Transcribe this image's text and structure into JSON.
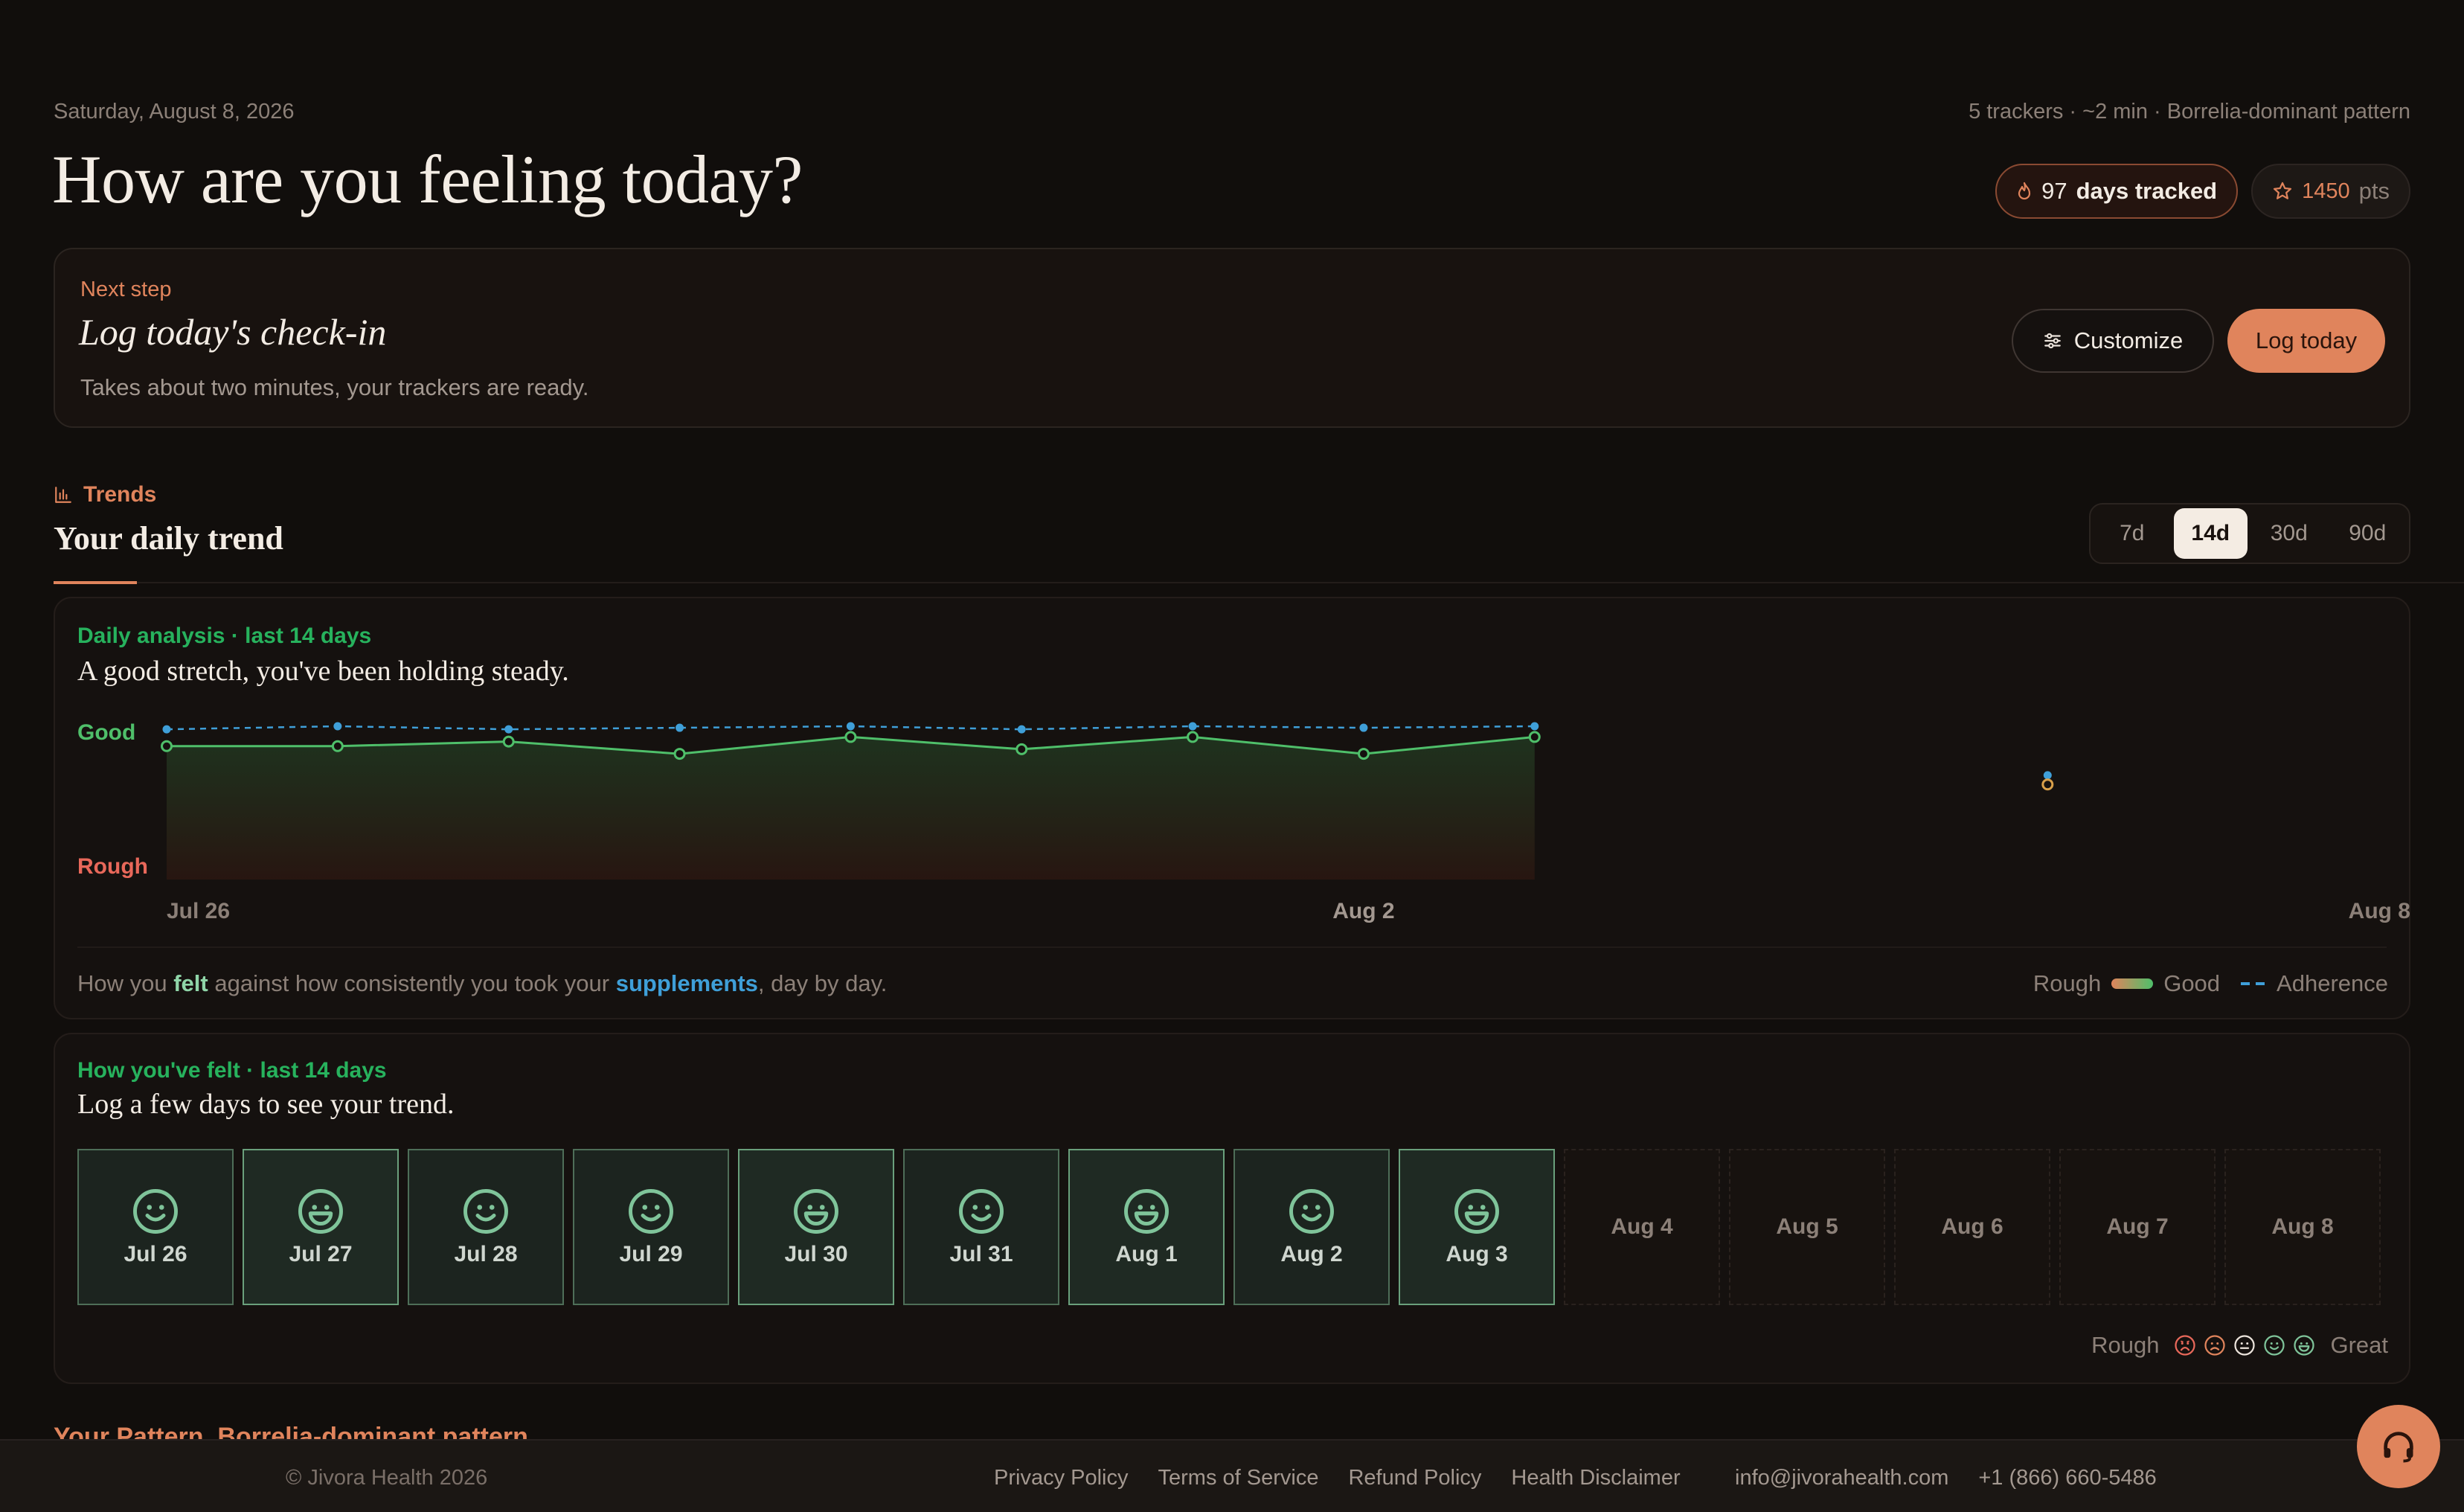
{
  "header": {
    "date": "Saturday, August 8, 2026",
    "meta": "5 trackers · ~2 min · Borrelia-dominant pattern",
    "title": "How are you feeling today?",
    "streak_count": "97",
    "streak_label": "days tracked",
    "points_value": "1450",
    "points_unit": "pts"
  },
  "next_step": {
    "kicker": "Next step",
    "title": "Log today's check-in",
    "subtitle": "Takes about two minutes, your trackers are ready.",
    "customize_label": "Customize",
    "log_label": "Log today"
  },
  "trends": {
    "kicker": "Trends",
    "title": "Your daily trend",
    "ranges": [
      "7d",
      "14d",
      "30d",
      "90d"
    ],
    "active_range": "14d"
  },
  "analysis": {
    "kicker": "Daily analysis · last 14 days",
    "headline": "A good stretch, you've been holding steady.",
    "note_pre": "How you ",
    "note_felt": "felt",
    "note_mid": " against how consistently you took your ",
    "note_supp": "supplements",
    "note_post": ", day by day.",
    "legend_rough": "Rough",
    "legend_good": "Good",
    "legend_adherence": "Adherence"
  },
  "chart_data": {
    "type": "line",
    "y_top_label": "Good",
    "y_bottom_label": "Rough",
    "x_tick_labels": [
      "Jul 26",
      "Aug 2",
      "Aug 8"
    ],
    "dates": [
      "Jul 26",
      "Jul 27",
      "Jul 28",
      "Jul 29",
      "Jul 30",
      "Jul 31",
      "Aug 1",
      "Aug 2",
      "Aug 3",
      "Aug 4",
      "Aug 5",
      "Aug 6",
      "Aug 7",
      "Aug 8"
    ],
    "ylim": [
      0,
      1
    ],
    "series": [
      {
        "name": "felt",
        "color": "#4fbf6a",
        "values": [
          0.87,
          0.87,
          0.9,
          0.82,
          0.93,
          0.85,
          0.93,
          0.82,
          0.93,
          null,
          null,
          null,
          null,
          null
        ]
      },
      {
        "name": "supplements",
        "color": "#3f9fd8",
        "values": [
          0.98,
          1.0,
          0.98,
          0.99,
          1.0,
          0.98,
          1.0,
          0.99,
          1.0,
          null,
          null,
          null,
          null,
          null
        ]
      }
    ],
    "isolated_points": [
      {
        "date": "Aug 6",
        "felt": 0.62,
        "supplements": 0.68
      }
    ]
  },
  "felt": {
    "kicker": "How you've felt · last 14 days",
    "headline": "Log a few days to see your trend.",
    "days": [
      {
        "label": "Jul 26",
        "mood": "good"
      },
      {
        "label": "Jul 27",
        "mood": "great"
      },
      {
        "label": "Jul 28",
        "mood": "good"
      },
      {
        "label": "Jul 29",
        "mood": "good"
      },
      {
        "label": "Jul 30",
        "mood": "great"
      },
      {
        "label": "Jul 31",
        "mood": "good"
      },
      {
        "label": "Aug 1",
        "mood": "great"
      },
      {
        "label": "Aug 2",
        "mood": "good"
      },
      {
        "label": "Aug 3",
        "mood": "great"
      },
      {
        "label": "Aug 4",
        "mood": null
      },
      {
        "label": "Aug 5",
        "mood": null
      },
      {
        "label": "Aug 6",
        "mood": null
      },
      {
        "label": "Aug 7",
        "mood": null
      },
      {
        "label": "Aug 8",
        "mood": null
      }
    ],
    "legend_rough": "Rough",
    "legend_great": "Great"
  },
  "pattern_peek": "Your Pattern, Borrelia-dominant pattern",
  "footer": {
    "copyright": "© Jivora Health 2026",
    "links": [
      "Privacy Policy",
      "Terms of Service",
      "Refund Policy",
      "Health Disclaimer"
    ],
    "email": "info@jivorahealth.com",
    "phone": "+1 (866) 660-5486"
  },
  "colors": {
    "accent": "#e0845c",
    "good_green": "#27b25d",
    "adherence_blue": "#3f9fd8",
    "background": "#110e0c"
  }
}
